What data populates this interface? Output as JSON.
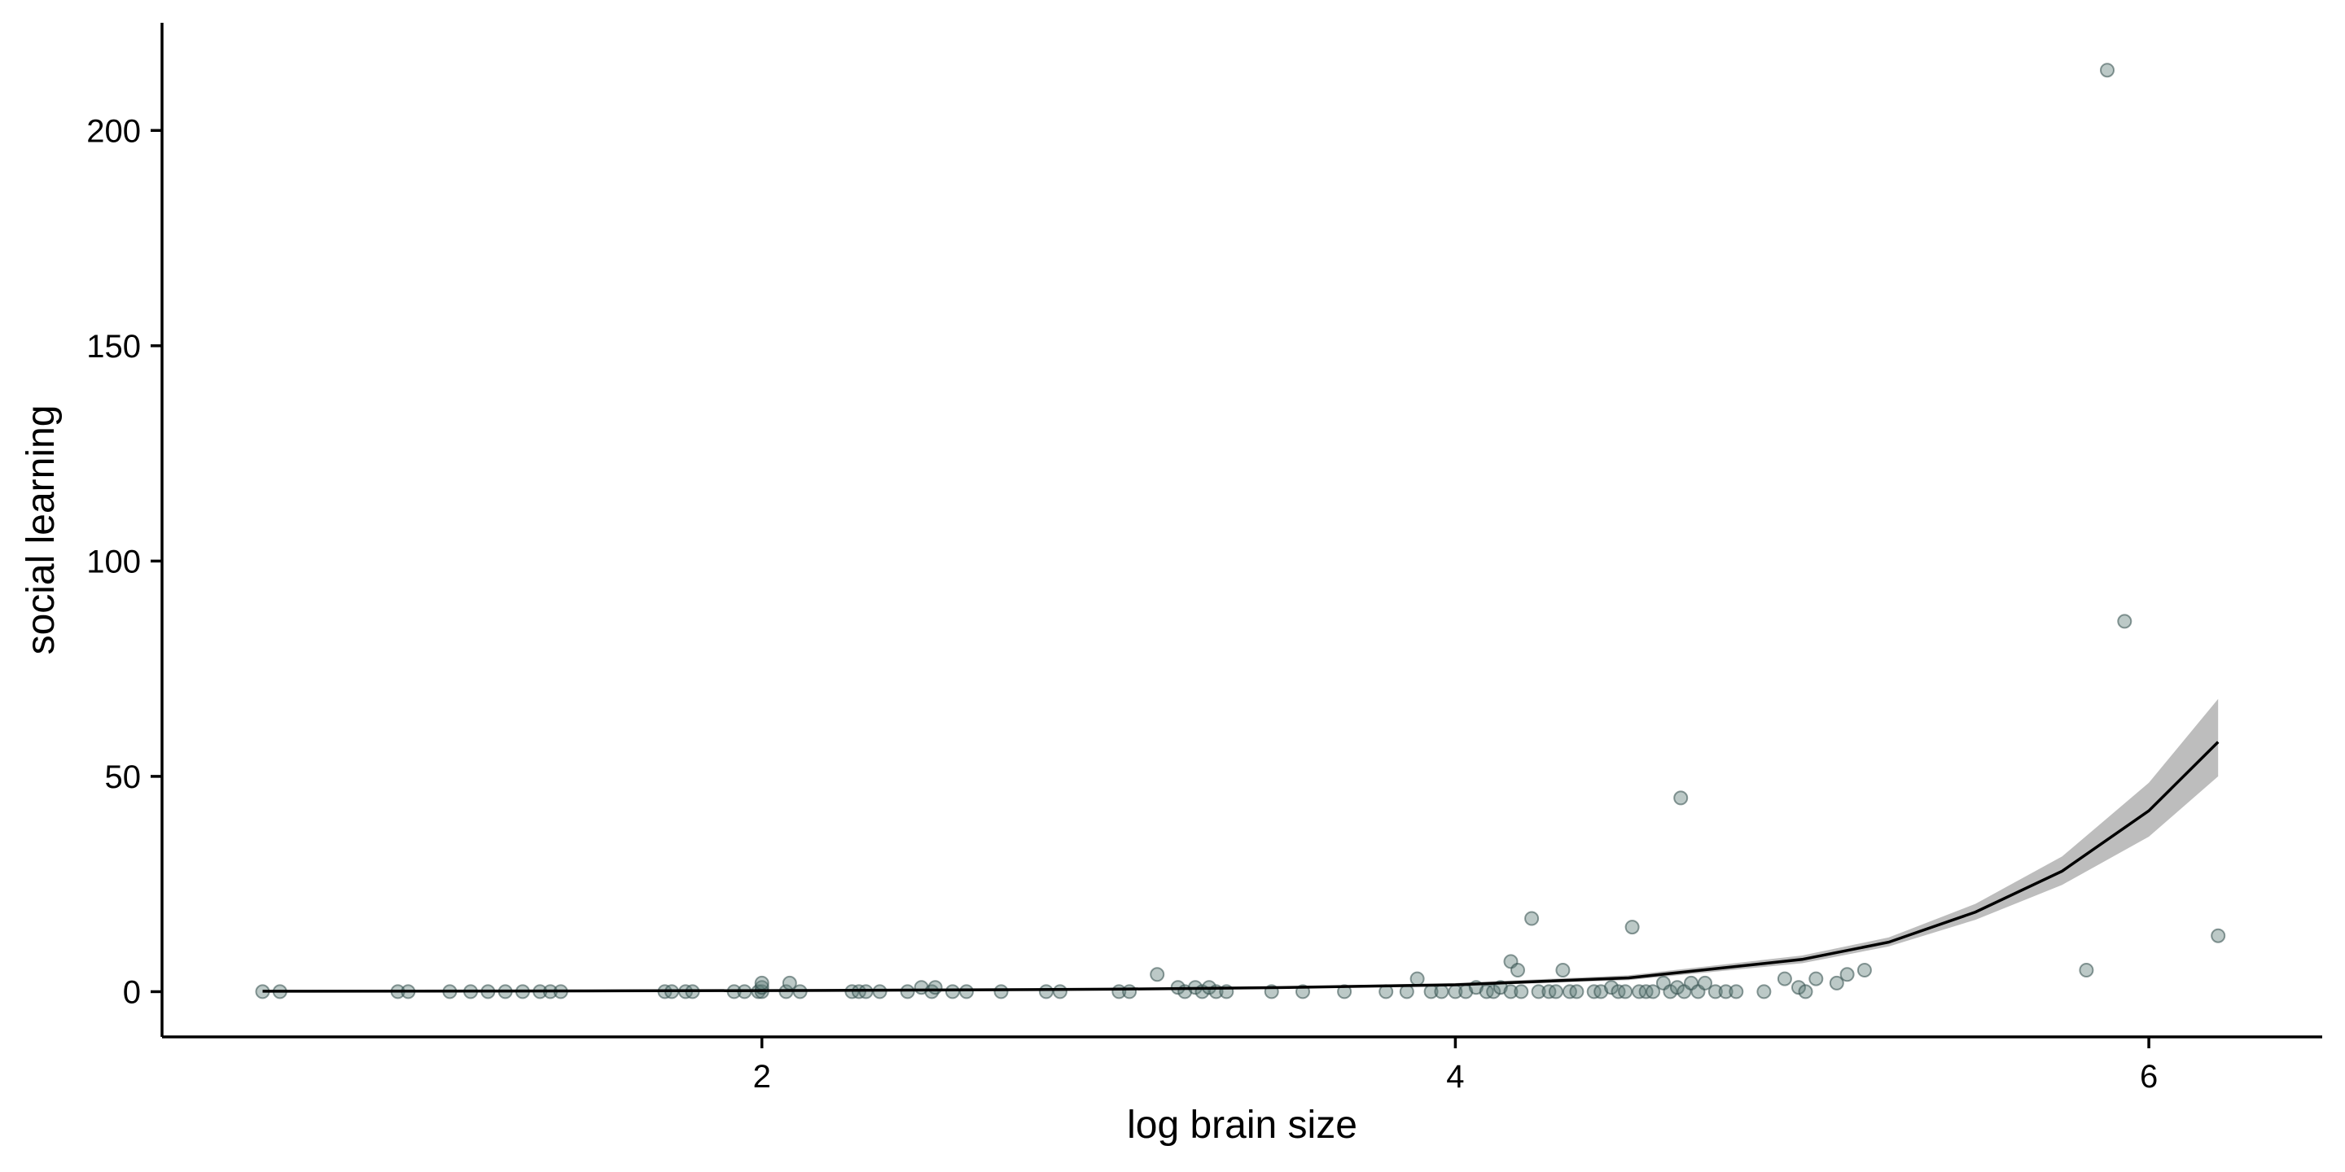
{
  "chart_data": {
    "type": "scatter",
    "title": "",
    "xlabel": "log brain size",
    "ylabel": "social learning",
    "xlim": [
      0.27,
      6.5
    ],
    "ylim": [
      -10.5,
      225
    ],
    "x_ticks": [
      2,
      4,
      6
    ],
    "y_ticks": [
      0,
      50,
      100,
      150,
      200
    ],
    "grid": false,
    "legend": "none",
    "colors": {
      "points": "#5f7f7a",
      "point_stroke": "#2f4a48",
      "fit_line": "#000000",
      "confidence_band": "#bdbdbd"
    },
    "points": [
      [
        0.56,
        0
      ],
      [
        0.61,
        0
      ],
      [
        0.95,
        0
      ],
      [
        0.98,
        0
      ],
      [
        1.1,
        0
      ],
      [
        1.16,
        0
      ],
      [
        1.21,
        0
      ],
      [
        1.26,
        0
      ],
      [
        1.31,
        0
      ],
      [
        1.36,
        0
      ],
      [
        1.39,
        0
      ],
      [
        1.42,
        0
      ],
      [
        1.72,
        0
      ],
      [
        1.74,
        0
      ],
      [
        1.78,
        0
      ],
      [
        1.8,
        0
      ],
      [
        1.92,
        0
      ],
      [
        1.95,
        0
      ],
      [
        1.99,
        0
      ],
      [
        2.0,
        0
      ],
      [
        2.0,
        1
      ],
      [
        2.0,
        2
      ],
      [
        2.07,
        0
      ],
      [
        2.08,
        2
      ],
      [
        2.11,
        0
      ],
      [
        2.26,
        0
      ],
      [
        2.28,
        0
      ],
      [
        2.3,
        0
      ],
      [
        2.34,
        0
      ],
      [
        2.42,
        0
      ],
      [
        2.46,
        1
      ],
      [
        2.49,
        0
      ],
      [
        2.5,
        1
      ],
      [
        2.55,
        0
      ],
      [
        2.59,
        0
      ],
      [
        2.69,
        0
      ],
      [
        2.82,
        0
      ],
      [
        2.86,
        0
      ],
      [
        3.03,
        0
      ],
      [
        3.06,
        0
      ],
      [
        3.14,
        4
      ],
      [
        3.2,
        1
      ],
      [
        3.22,
        0
      ],
      [
        3.25,
        1
      ],
      [
        3.27,
        0
      ],
      [
        3.29,
        1
      ],
      [
        3.31,
        0
      ],
      [
        3.34,
        0
      ],
      [
        3.47,
        0
      ],
      [
        3.56,
        0
      ],
      [
        3.68,
        0
      ],
      [
        3.8,
        0
      ],
      [
        3.86,
        0
      ],
      [
        3.89,
        3
      ],
      [
        3.93,
        0
      ],
      [
        3.96,
        0
      ],
      [
        4.0,
        0
      ],
      [
        4.03,
        0
      ],
      [
        4.06,
        1
      ],
      [
        4.09,
        0
      ],
      [
        4.11,
        0
      ],
      [
        4.13,
        1
      ],
      [
        4.16,
        0
      ],
      [
        4.16,
        7
      ],
      [
        4.18,
        5
      ],
      [
        4.19,
        0
      ],
      [
        4.22,
        17
      ],
      [
        4.24,
        0
      ],
      [
        4.27,
        0
      ],
      [
        4.29,
        0
      ],
      [
        4.31,
        5
      ],
      [
        4.33,
        0
      ],
      [
        4.35,
        0
      ],
      [
        4.4,
        0
      ],
      [
        4.42,
        0
      ],
      [
        4.45,
        1
      ],
      [
        4.47,
        0
      ],
      [
        4.49,
        0
      ],
      [
        4.51,
        15
      ],
      [
        4.53,
        0
      ],
      [
        4.55,
        0
      ],
      [
        4.57,
        0
      ],
      [
        4.6,
        2
      ],
      [
        4.62,
        0
      ],
      [
        4.64,
        1
      ],
      [
        4.65,
        45
      ],
      [
        4.66,
        0
      ],
      [
        4.68,
        2
      ],
      [
        4.7,
        0
      ],
      [
        4.72,
        2
      ],
      [
        4.75,
        0
      ],
      [
        4.78,
        0
      ],
      [
        4.81,
        0
      ],
      [
        4.89,
        0
      ],
      [
        4.95,
        3
      ],
      [
        4.99,
        1
      ],
      [
        5.01,
        0
      ],
      [
        5.04,
        3
      ],
      [
        5.1,
        2
      ],
      [
        5.13,
        4
      ],
      [
        5.18,
        5
      ],
      [
        5.82,
        5
      ],
      [
        5.88,
        214
      ],
      [
        5.93,
        86
      ],
      [
        6.2,
        13
      ]
    ],
    "fit": {
      "x": [
        0.56,
        1.0,
        1.5,
        2.0,
        2.5,
        3.0,
        3.5,
        4.0,
        4.5,
        5.0,
        5.25,
        5.5,
        5.75,
        6.0,
        6.2
      ],
      "y": [
        0.1,
        0.12,
        0.18,
        0.25,
        0.38,
        0.58,
        0.95,
        1.6,
        3.2,
        7.5,
        11.5,
        18.5,
        28.0,
        42.0,
        58.0
      ],
      "ci_low": [
        0.06,
        0.08,
        0.12,
        0.18,
        0.28,
        0.45,
        0.75,
        1.3,
        2.7,
        6.6,
        10.5,
        16.7,
        24.8,
        36.0,
        50.0
      ],
      "ci_high": [
        0.16,
        0.18,
        0.25,
        0.34,
        0.5,
        0.74,
        1.2,
        2.0,
        3.8,
        8.4,
        12.6,
        20.4,
        31.4,
        48.5,
        68.0
      ]
    }
  }
}
